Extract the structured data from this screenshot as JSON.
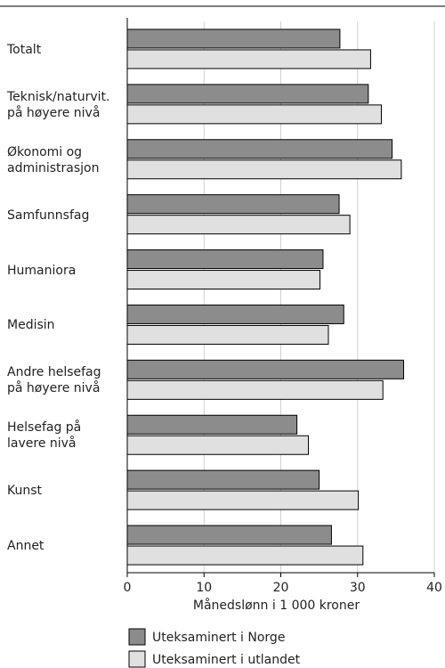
{
  "chart_data": {
    "type": "bar",
    "orientation": "horizontal",
    "categories": [
      "Totalt",
      "Teknisk/naturvit.\npå høyere nivå",
      "Økonomi og\nadministrasjon",
      "Samfunnsfag",
      "Humaniora",
      "Medisin",
      "Andre helsefag\npå høyere nivå",
      "Helsefag på\nlavere nivå",
      "Kunst",
      "Annet"
    ],
    "series": [
      {
        "name": "Uteksaminert i Norge",
        "color": "#8c8c8c",
        "values": [
          27.7,
          31.4,
          34.5,
          27.6,
          25.5,
          28.2,
          36.0,
          22.1,
          25.0,
          26.6
        ]
      },
      {
        "name": "Uteksaminert i utlandet",
        "color": "#e0e0e0",
        "values": [
          31.7,
          33.1,
          35.7,
          29.0,
          25.1,
          26.2,
          33.3,
          23.6,
          30.1,
          30.7
        ]
      }
    ],
    "xlabel": "Månedslønn i 1 000 kroner",
    "xlim": [
      0,
      40
    ],
    "xticks": [
      0,
      10,
      20,
      30,
      40
    ],
    "grid": true
  }
}
